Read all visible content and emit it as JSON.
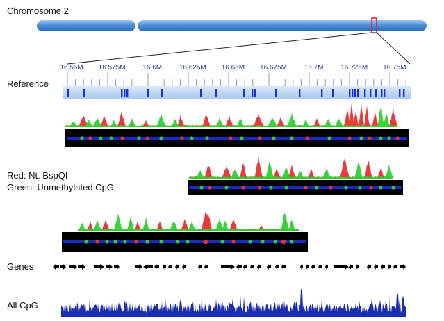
{
  "chromosome": {
    "title": "Chromosome 2"
  },
  "reference": {
    "label": "Reference",
    "ticks": [
      "16.55M",
      "16.575M",
      "16.6M",
      "16.625M",
      "16.65M",
      "16.675M",
      "16.7M",
      "16.725M",
      "16.75M"
    ]
  },
  "legend": {
    "red_label": "Red: Nt. BspQI",
    "green_label": "Green: Unmethylated CpG"
  },
  "genes": {
    "label": "Genes"
  },
  "cpg": {
    "label": "All CpG"
  },
  "colors": {
    "chromosome_blue": "#4f8fd8",
    "highlight_red": "#e02020",
    "nick_red": "#e83030",
    "cpg_green": "#2fd02f",
    "molecule_bg": "#000000",
    "molecule_blue": "#1a2fd8",
    "cpg_track": "#1a2fb0"
  }
}
